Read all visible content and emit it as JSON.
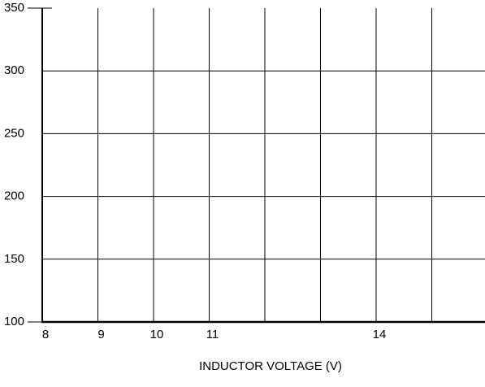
{
  "chart_data": {
    "type": "line",
    "x_axis_label": "INDUCTOR VOLTAGE (V)",
    "series": [],
    "xlim": [
      8,
      16
    ],
    "xticks": [
      8,
      9,
      10,
      11,
      14
    ],
    "xgrid": [
      9,
      10,
      11,
      12,
      13,
      14,
      15
    ],
    "ylim": [
      100,
      350
    ],
    "yticks": [
      100,
      150,
      200,
      250,
      300,
      350
    ],
    "grid": true
  }
}
